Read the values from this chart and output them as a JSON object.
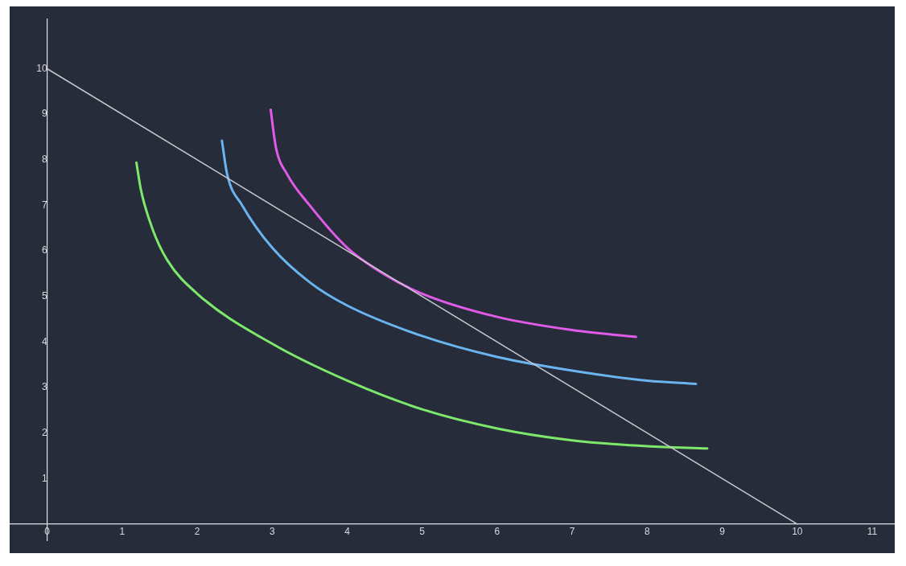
{
  "chart_data": {
    "type": "line",
    "marker": "none",
    "grid": false,
    "legend": false,
    "xlim": [
      -0.5,
      11.3
    ],
    "ylim": [
      -0.37,
      11.1
    ],
    "xticks": [
      0,
      1,
      2,
      3,
      4,
      5,
      6,
      7,
      8,
      9,
      10,
      11
    ],
    "yticks": [
      1,
      2,
      3,
      4,
      5,
      6,
      7,
      8,
      9,
      10
    ],
    "series": [
      {
        "color": "#c8c8cc",
        "x": [
          0,
          10
        ],
        "values": [
          10,
          0
        ]
      },
      {
        "color": "#7de86a",
        "x": [
          1.19,
          1.25,
          1.4,
          1.6,
          2,
          3,
          4,
          5,
          6,
          7,
          8,
          8.8
        ],
        "values": [
          7.94,
          7.34,
          6.5,
          5.8,
          5.06,
          3.96,
          3.15,
          2.52,
          2.1,
          1.84,
          1.71,
          1.66
        ]
      },
      {
        "color": "#6ab4f0",
        "x": [
          2.33,
          2.4,
          2.6,
          3,
          3.5,
          4,
          5,
          6,
          7,
          8,
          8.65
        ],
        "values": [
          8.42,
          7.68,
          7.0,
          6.07,
          5.31,
          4.8,
          4.13,
          3.67,
          3.37,
          3.15,
          3.08
        ]
      },
      {
        "color": "#e05ce8",
        "x": [
          2.98,
          3.05,
          3.2,
          3.5,
          4,
          4.5,
          5,
          6,
          7,
          7.85
        ],
        "values": [
          9.1,
          8.27,
          7.68,
          7.0,
          6.07,
          5.48,
          5.06,
          4.55,
          4.26,
          4.11
        ]
      }
    ]
  }
}
